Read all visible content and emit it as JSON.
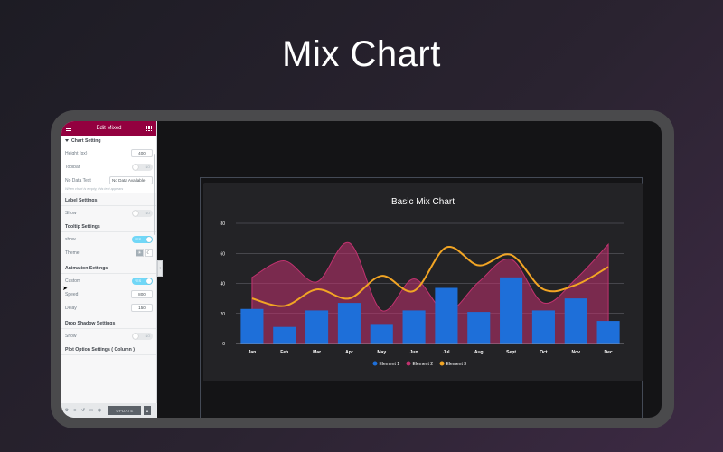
{
  "hero": {
    "title": "Mix Chart"
  },
  "panel": {
    "header_title": "Edit Mixed",
    "chart_setting": {
      "title": "Chart Setting",
      "height_label": "Height (px)",
      "height_value": "400",
      "toolbar_label": "Toolbar",
      "toolbar_state": "NO",
      "no_data_label": "No Data Text",
      "no_data_value": "No Data Available",
      "no_data_hint": "When chart is empty, this text appears"
    },
    "label_settings": {
      "title": "Label Settings",
      "show_label": "Show",
      "show_state": "NO"
    },
    "tooltip_settings": {
      "title": "Tooltip Settings",
      "show_label": "show",
      "show_state": "YES",
      "theme_label": "Theme",
      "theme_light_icon": "sun-icon",
      "theme_dark_icon": "moon-icon"
    },
    "animation_settings": {
      "title": "Animation Settings",
      "custom_label": "Custom",
      "custom_state": "YES",
      "speed_label": "Speed",
      "speed_value": "800",
      "delay_label": "Delay",
      "delay_value": "150"
    },
    "drop_shadow_settings": {
      "title": "Drop Shadow Settings",
      "show_label": "Show",
      "show_state": "NO"
    },
    "plot_option_settings": {
      "title": "Plot Option Settings ( Column )"
    },
    "footer": {
      "update_label": "UPDATE"
    }
  },
  "chart_data": {
    "type": "bar",
    "title": "Basic Mix Chart",
    "categories": [
      "Jan",
      "Feb",
      "Mar",
      "Apr",
      "May",
      "Jun",
      "Jul",
      "Aug",
      "Sept",
      "Oct",
      "Nov",
      "Dec"
    ],
    "ylim": [
      0,
      80
    ],
    "yticks": [
      0,
      20,
      40,
      60,
      80
    ],
    "grid": true,
    "legend_position": "bottom",
    "series": [
      {
        "name": "Element 1",
        "kind": "column",
        "color": "#1e6fd9",
        "values": [
          23,
          11,
          22,
          27,
          13,
          22,
          37,
          21,
          44,
          22,
          30,
          15
        ]
      },
      {
        "name": "Element 2",
        "kind": "area",
        "color": "#c2326f",
        "values": [
          44,
          55,
          41,
          67,
          22,
          43,
          21,
          41,
          56,
          27,
          43,
          66
        ]
      },
      {
        "name": "Element 3",
        "kind": "line",
        "color": "#f2a524",
        "values": [
          30,
          25,
          36,
          30,
          45,
          35,
          64,
          52,
          59,
          36,
          39,
          51
        ]
      }
    ]
  },
  "colors": {
    "panel_header": "#93003f",
    "toggle_on": "#71d7f7",
    "chart_bg": "#232326"
  }
}
